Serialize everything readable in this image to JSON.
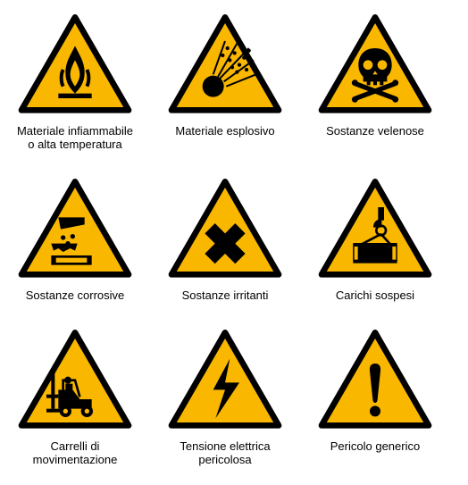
{
  "colors": {
    "sign_fill": "#f9b700",
    "sign_stroke": "#000000",
    "page_bg": "#ffffff",
    "text": "#000000"
  },
  "label_fontsize": 13,
  "signs": [
    {
      "id": "flammable",
      "label_html": "Materiale infiammabile<br/>o alta temperatura"
    },
    {
      "id": "explosive",
      "label_html": "Materiale esplosivo"
    },
    {
      "id": "toxic",
      "label_html": "Sostanze velenose"
    },
    {
      "id": "corrosive",
      "label_html": "Sostanze corrosive"
    },
    {
      "id": "irritant",
      "label_html": "Sostanze irritanti"
    },
    {
      "id": "overhead",
      "label_html": "Carichi sospesi"
    },
    {
      "id": "forklift",
      "label_html": "Carrelli di<br/>movimentazione"
    },
    {
      "id": "electric",
      "label_html": "Tensione elettrica<br/>pericolosa"
    },
    {
      "id": "generic",
      "label_html": "Pericolo generico"
    }
  ]
}
